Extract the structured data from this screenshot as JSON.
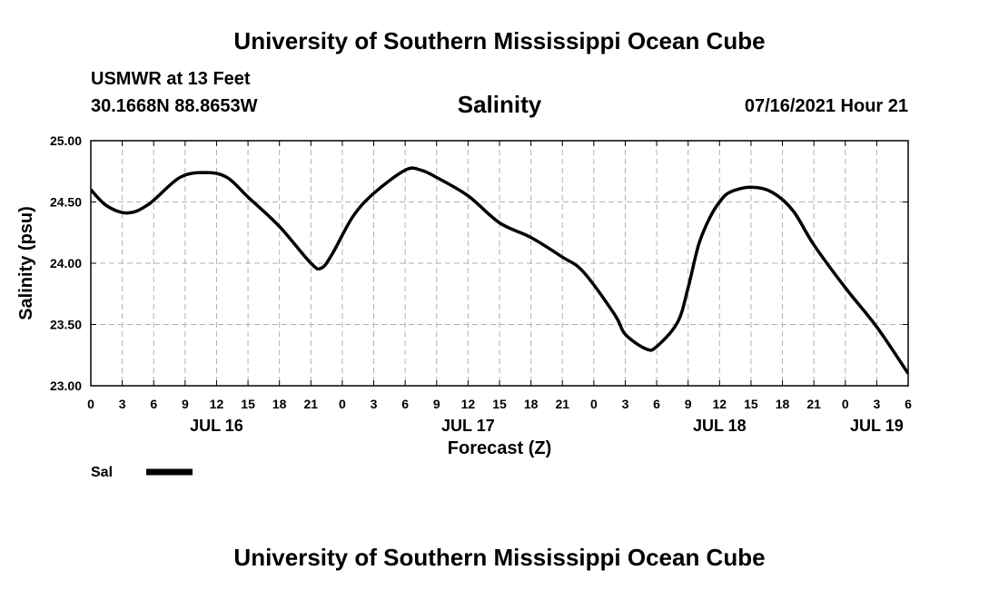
{
  "header": {
    "title": "University of Southern Mississippi Ocean Cube",
    "station": "USMWR at 13 Feet",
    "coordinates": "30.1668N  88.8653W",
    "plot_title": "Salinity",
    "datetime": "07/16/2021 Hour 21"
  },
  "footer": {
    "title": "University of Southern Mississippi Ocean Cube"
  },
  "chart_data": {
    "type": "line",
    "ylabel": "Salinity (psu)",
    "xlabel": "Forecast (Z)",
    "ylim": [
      23.0,
      25.0
    ],
    "y_ticks": [
      "23.00",
      "23.50",
      "24.00",
      "24.50",
      "25.00"
    ],
    "xlim": [
      0,
      78
    ],
    "x_tick_step_hours": 3,
    "x_tick_labels": [
      "0",
      "3",
      "6",
      "9",
      "12",
      "15",
      "18",
      "21",
      "0",
      "3",
      "6",
      "9",
      "12",
      "15",
      "18",
      "21",
      "0",
      "3",
      "6",
      "9",
      "12",
      "15",
      "18",
      "21",
      "0",
      "3",
      "6"
    ],
    "date_labels": [
      {
        "hour": 12,
        "label": "JUL 16"
      },
      {
        "hour": 36,
        "label": "JUL 17"
      },
      {
        "hour": 60,
        "label": "JUL 18"
      },
      {
        "hour": 75,
        "label": "JUL 19"
      }
    ],
    "grid": true,
    "legend": {
      "placement": "bottom-left",
      "label": "Sal"
    },
    "line_color": "#000000",
    "series": [
      {
        "name": "Sal",
        "x": [
          0,
          1.5,
          3.5,
          5.5,
          8.5,
          11,
          13,
          15,
          18,
          21,
          22,
          23,
          25,
          27,
          30,
          31.5,
          33,
          36,
          39,
          42,
          45,
          47,
          50,
          51,
          53,
          54,
          56,
          57,
          58,
          59,
          60,
          61,
          63,
          65,
          67,
          69,
          72,
          75,
          78
        ],
        "y": [
          24.6,
          24.47,
          24.41,
          24.48,
          24.7,
          24.74,
          24.7,
          24.54,
          24.3,
          24.0,
          23.96,
          24.07,
          24.38,
          24.57,
          24.76,
          24.76,
          24.7,
          24.55,
          24.33,
          24.21,
          24.05,
          23.93,
          23.58,
          23.42,
          23.3,
          23.32,
          23.52,
          23.8,
          24.15,
          24.36,
          24.5,
          24.58,
          24.62,
          24.58,
          24.43,
          24.15,
          23.8,
          23.48,
          23.1
        ]
      }
    ]
  }
}
